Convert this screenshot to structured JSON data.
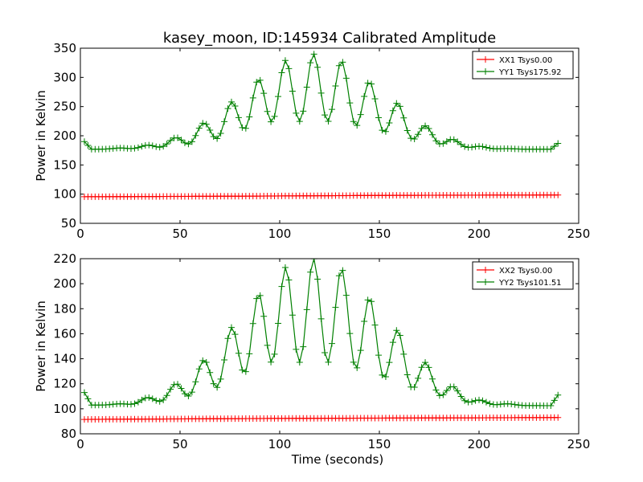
{
  "title": "kasey_moon, ID:145934 Calibrated Amplitude",
  "colors": {
    "xx": "#ff0000",
    "yy": "#008000",
    "axes": "#000000",
    "background": "#ffffff"
  },
  "chart_data": [
    {
      "type": "line",
      "title": "kasey_moon, ID:145934 Calibrated Amplitude",
      "xlabel": "",
      "ylabel": "Power in Kelvin",
      "xlim": [
        0,
        250
      ],
      "ylim": [
        50,
        350
      ],
      "xticks": [
        0,
        50,
        100,
        150,
        200,
        250
      ],
      "yticks": [
        50,
        100,
        150,
        200,
        250,
        300,
        350
      ],
      "grid": false,
      "legend_position": "top-right",
      "marker": "+",
      "series": [
        {
          "name": "XX1 Tsys0.00",
          "color": "#ff0000",
          "x_range": [
            2,
            240
          ],
          "sample_step": 1.8,
          "baseline": [
            [
              0,
              95.5
            ],
            [
              80,
              96.5
            ],
            [
              160,
              98
            ],
            [
              240,
              98.5
            ]
          ],
          "peaks": []
        },
        {
          "name": "YY1 Tsys175.92",
          "color": "#008000",
          "x_range": [
            2,
            240
          ],
          "sample_step": 1.8,
          "baseline": [
            [
              0,
              177
            ],
            [
              240,
              177
            ]
          ],
          "start_value": 190,
          "end_value": 187,
          "peak_width": 3.6,
          "peaks": [
            [
              20,
              179
            ],
            [
              34,
              184
            ],
            [
              48,
              197
            ],
            [
              62,
              222
            ],
            [
              76,
              258
            ],
            [
              89.5,
              297
            ],
            [
              103,
              329
            ],
            [
              117,
              340
            ],
            [
              131,
              328
            ],
            [
              145,
              293
            ],
            [
              159,
              256
            ],
            [
              173,
              217
            ],
            [
              186.5,
              194
            ],
            [
              200,
              182
            ],
            [
              214,
              178
            ]
          ]
        }
      ]
    },
    {
      "type": "line",
      "xlabel": "Time (seconds)",
      "ylabel": "Power in Kelvin",
      "xlim": [
        0,
        250
      ],
      "ylim": [
        80,
        220
      ],
      "xticks": [
        0,
        50,
        100,
        150,
        200,
        250
      ],
      "yticks": [
        80,
        100,
        120,
        140,
        160,
        180,
        200,
        220
      ],
      "grid": false,
      "legend_position": "top-right",
      "marker": "+",
      "series": [
        {
          "name": "XX2 Tsys0.00",
          "color": "#ff0000",
          "x_range": [
            2,
            240
          ],
          "sample_step": 1.8,
          "baseline": [
            [
              0,
              91.5
            ],
            [
              100,
              92.3
            ],
            [
              240,
              93
            ]
          ],
          "peaks": []
        },
        {
          "name": "YY2 Tsys101.51",
          "color": "#008000",
          "x_range": [
            2,
            240
          ],
          "sample_step": 1.8,
          "baseline": [
            [
              0,
              103
            ],
            [
              240,
              102.5
            ]
          ],
          "start_value": 113,
          "end_value": 111,
          "peak_width": 3.6,
          "peaks": [
            [
              20,
              104
            ],
            [
              34,
              109
            ],
            [
              48,
              120
            ],
            [
              62,
              139
            ],
            [
              76,
              165
            ],
            [
              89.5,
              192
            ],
            [
              103,
              213
            ],
            [
              117,
              220
            ],
            [
              131,
              212
            ],
            [
              145,
              189
            ],
            [
              159,
              163
            ],
            [
              173,
              137
            ],
            [
              186.5,
              118
            ],
            [
              200,
              107
            ],
            [
              214,
              104
            ]
          ]
        }
      ]
    }
  ]
}
